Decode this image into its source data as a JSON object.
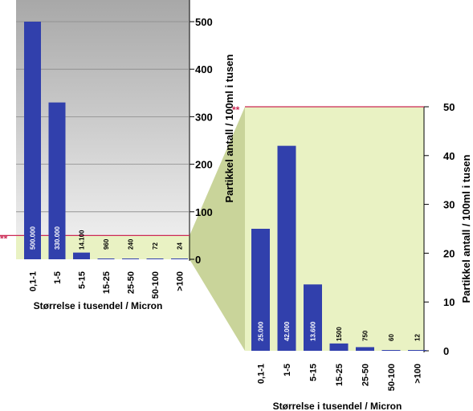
{
  "colors": {
    "bar": "#3140ac",
    "limit_line": "#cc2a55",
    "highlight": "#e9f2c3",
    "panel_dark": "#a9a9a9",
    "panel_light": "#efefef"
  },
  "limit_marker": "**",
  "chart_data": [
    {
      "type": "bar",
      "title": "",
      "xlabel": "Størrelse i tusendel / Micron",
      "ylabel": "Partikkel antall / 100ml i tusen",
      "categories": [
        "0,1-1",
        "1-5",
        "5-15",
        "15-25",
        "25-50",
        "50-100",
        ">100"
      ],
      "values": [
        500,
        330,
        14.1,
        0.96,
        0.24,
        0.072,
        0.024
      ],
      "data_labels": [
        "500.000",
        "330.000",
        "14.100",
        "960",
        "240",
        "72",
        "24"
      ],
      "ylim": [
        0,
        500
      ],
      "yticks": [
        "0",
        "100",
        "200",
        "300",
        "400",
        "500"
      ],
      "limit_value": 50
    },
    {
      "type": "bar",
      "title": "",
      "xlabel": "Størrelse i tusendel / Micron",
      "ylabel": "Partikkel antall / 100ml i tusen",
      "categories": [
        "0,1-1",
        "1-5",
        "5-15",
        "15-25",
        "25-50",
        "50-100",
        ">100"
      ],
      "values": [
        25,
        42,
        13.6,
        1.5,
        0.75,
        0.06,
        0.012
      ],
      "data_labels": [
        "25.000",
        "42.000",
        "13.600",
        "1500",
        "750",
        "60",
        "12"
      ],
      "ylim": [
        0,
        50
      ],
      "yticks": [
        "0",
        "10",
        "20",
        "30",
        "40",
        "50"
      ],
      "limit_value": 50
    }
  ]
}
